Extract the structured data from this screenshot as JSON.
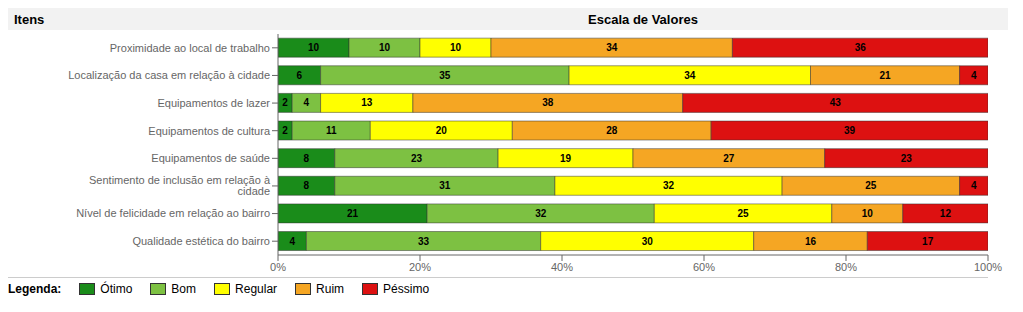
{
  "chart_data": {
    "type": "bar",
    "orientation": "horizontal",
    "stacked": true,
    "data_labels": true,
    "legend": "bottom",
    "grid": false,
    "title": "Escala de Valores",
    "ylabel": "Itens",
    "legend_title": "Legenda:",
    "categories": [
      "Proximidade ao local de trabalho",
      "Localização da casa em relação à cidade",
      "Equipamentos de lazer",
      "Equipamentos de cultura",
      "Equipamentos de saúde",
      "Sentimento de inclusão em relação à cidade",
      "Nível de felicidade em relação ao bairro",
      "Qualidade estética do bairro"
    ],
    "series": [
      {
        "name": "Ótimo",
        "color": "#1a8c1a",
        "values": [
          10,
          6,
          2,
          2,
          8,
          8,
          21,
          4
        ]
      },
      {
        "name": "Bom",
        "color": "#7dc142",
        "values": [
          10,
          35,
          4,
          11,
          23,
          31,
          32,
          33
        ]
      },
      {
        "name": "Regular",
        "color": "#ffff00",
        "values": [
          10,
          34,
          13,
          20,
          19,
          32,
          25,
          30
        ]
      },
      {
        "name": "Ruim",
        "color": "#f5a623",
        "values": [
          34,
          21,
          38,
          28,
          27,
          25,
          10,
          16
        ]
      },
      {
        "name": "Péssimo",
        "color": "#dd1111",
        "values": [
          36,
          4,
          43,
          39,
          23,
          4,
          12,
          17
        ]
      }
    ],
    "xlim": [
      0,
      100
    ],
    "xticks": [
      {
        "value": 0,
        "label": "0%"
      },
      {
        "value": 20,
        "label": "20%"
      },
      {
        "value": 40,
        "label": "40%"
      },
      {
        "value": 60,
        "label": "60%"
      },
      {
        "value": 80,
        "label": "80%"
      },
      {
        "value": 100,
        "label": "100%"
      }
    ]
  }
}
